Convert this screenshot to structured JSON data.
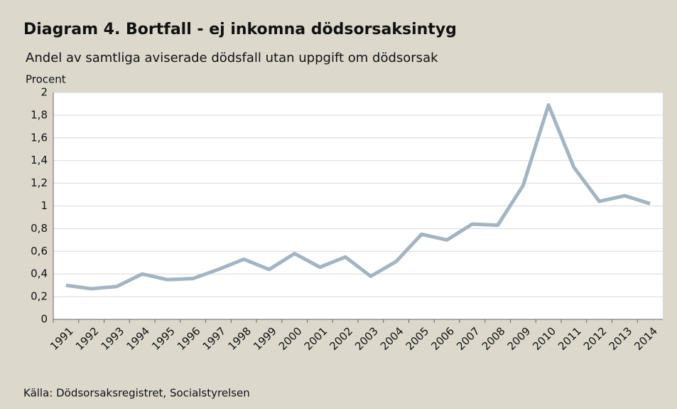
{
  "chart_data": {
    "type": "line",
    "title": "Diagram 4. Bortfall - ej inkomna dödsorsaksintyg",
    "subtitle": "Andel av samtliga aviserade dödsfall utan uppgift om dödsorsak",
    "y_label": "Procent",
    "source": "Källa: Dödsorsaksregistret, Socialstyrelsen",
    "categories": [
      "1991",
      "1992",
      "1993",
      "1994",
      "1995",
      "1996",
      "1997",
      "1998",
      "1999",
      "2000",
      "2001",
      "2002",
      "2003",
      "2004",
      "2005",
      "2006",
      "2007",
      "2008",
      "2009",
      "2010",
      "2011",
      "2012",
      "2013",
      "2014"
    ],
    "series": [
      {
        "name": "Bortfall",
        "color": "#a3b5c2",
        "values": [
          0.3,
          0.27,
          0.29,
          0.4,
          0.35,
          0.36,
          0.44,
          0.53,
          0.44,
          0.58,
          0.46,
          0.55,
          0.38,
          0.51,
          0.75,
          0.7,
          0.84,
          0.83,
          1.18,
          1.89,
          1.34,
          1.04,
          1.09,
          1.02
        ]
      }
    ],
    "ylim": [
      0,
      2
    ],
    "yticks": [
      0,
      {
        "value": 0.2,
        "label": "0,2"
      },
      {
        "value": 0.4,
        "label": "0,4"
      },
      {
        "value": 0.6,
        "label": "0,6"
      },
      {
        "value": 0.8,
        "label": "0,8"
      },
      1,
      {
        "value": 1.2,
        "label": "1,2"
      },
      {
        "value": 1.4,
        "label": "1,4"
      },
      {
        "value": 1.6,
        "label": "1,6"
      },
      {
        "value": 1.8,
        "label": "1,8"
      },
      2
    ],
    "grid": true
  }
}
